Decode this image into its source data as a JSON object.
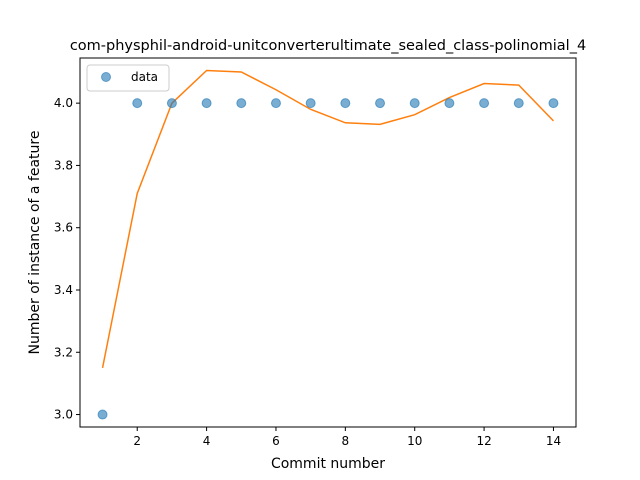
{
  "chart_data": {
    "type": "scatter",
    "title": "com-physphil-android-unitconverterultimate_sealed_class-polinomial_4",
    "xlabel": "Commit number",
    "ylabel": "Number of instance of a feature",
    "xlim": [
      0.35,
      14.65
    ],
    "ylim": [
      2.96,
      4.145
    ],
    "xticks": [
      2,
      4,
      6,
      8,
      10,
      12,
      14
    ],
    "yticks": [
      3.0,
      3.2,
      3.4,
      3.6,
      3.8,
      4.0
    ],
    "grid": false,
    "legend_position": "top-left",
    "series": [
      {
        "name": "data",
        "kind": "scatter",
        "color": "#1f77b4",
        "x": [
          1,
          2,
          3,
          4,
          5,
          6,
          7,
          8,
          9,
          10,
          11,
          12,
          13,
          14
        ],
        "y": [
          3.0,
          4.0,
          4.0,
          4.0,
          4.0,
          4.0,
          4.0,
          4.0,
          4.0,
          4.0,
          4.0,
          4.0,
          4.0,
          4.0
        ]
      },
      {
        "kind": "line",
        "color": "#ff7f0e",
        "x": [
          1,
          2,
          3,
          4,
          5,
          6,
          7,
          8,
          9,
          10,
          11,
          12,
          13,
          14
        ],
        "y": [
          3.15,
          3.71,
          4.0,
          4.105,
          4.1,
          4.043,
          3.98,
          3.937,
          3.932,
          3.963,
          4.018,
          4.063,
          4.058,
          3.943
        ]
      }
    ]
  }
}
